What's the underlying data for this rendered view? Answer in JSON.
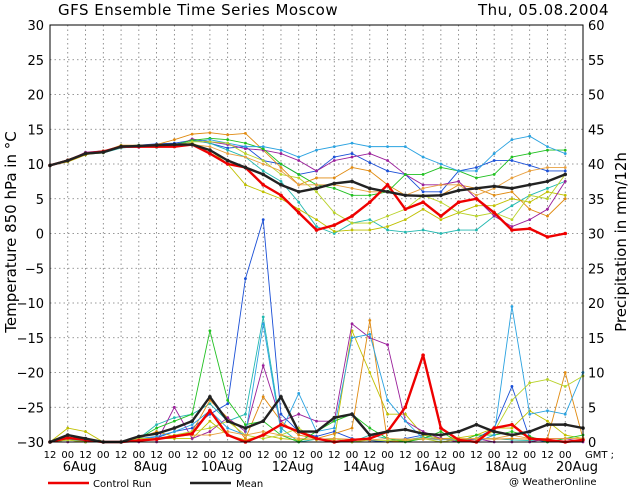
{
  "header": {
    "title": "GFS Ensemble Time Series Moscow",
    "date": "Thu, 05.08.2004"
  },
  "footer": {
    "legend_control": "Control Run",
    "legend_mean": "Mean",
    "credit": "@ WeatherOnline",
    "gmt_label": "GMT ;"
  },
  "colors": {
    "control": "#ee0000",
    "mean": "#222222",
    "members": [
      "#1a4fd6",
      "#22b8b0",
      "#c0c000",
      "#e08a10",
      "#9a1f9a",
      "#20c020",
      "#2aa2e0",
      "#b9d22a",
      "#e8a040",
      "#c01a7a"
    ]
  },
  "chart_data": {
    "type": "line",
    "title": "GFS Ensemble Time Series Moscow",
    "ylabel": "Temperature 850 hPa in °C",
    "y2label": "Precipitation in mm/12h",
    "ylim": [
      -30,
      30
    ],
    "y2lim": [
      0,
      60
    ],
    "yticks": [
      30,
      25,
      20,
      15,
      10,
      5,
      0,
      -5,
      -10,
      -15,
      -20,
      -25,
      -30
    ],
    "y2ticks": [
      60,
      55,
      50,
      45,
      40,
      35,
      30,
      25,
      20,
      15,
      10,
      5,
      0
    ],
    "x_hour_labels": [
      "12",
      "00",
      "12",
      "00",
      "12",
      "00",
      "12",
      "00",
      "12",
      "00",
      "12",
      "00",
      "12",
      "00",
      "12",
      "00",
      "12",
      "00",
      "12",
      "00",
      "12",
      "00",
      "12",
      "00",
      "12",
      "00",
      "12",
      "00",
      "12",
      "00"
    ],
    "x_date_labels": [
      {
        "label": "6Aug",
        "step": 2
      },
      {
        "label": "8Aug",
        "step": 6
      },
      {
        "label": "10Aug",
        "step": 10
      },
      {
        "label": "12Aug",
        "step": 14
      },
      {
        "label": "14Aug",
        "step": 18
      },
      {
        "label": "16Aug",
        "step": 22
      },
      {
        "label": "18Aug",
        "step": 26
      },
      {
        "label": "20Aug",
        "step": 30
      }
    ],
    "grid": true,
    "series": [
      {
        "name": "Control Run",
        "role": "control",
        "temp": [
          9.8,
          10.5,
          11.5,
          11.8,
          12.5,
          12.5,
          12.5,
          12.5,
          12.8,
          11.5,
          10,
          9.5,
          7,
          5.5,
          3,
          0.5,
          1.2,
          2.5,
          4.5,
          7,
          3.5,
          4.5,
          2.5,
          4.5,
          5,
          3,
          0.5,
          0.7,
          -0.5,
          0
        ],
        "precip": [
          0,
          0.6,
          0.3,
          0,
          0,
          0.2,
          0.4,
          0.8,
          1.2,
          4.5,
          1,
          0,
          1,
          2.5,
          1.5,
          0.5,
          0,
          0.3,
          0.5,
          1.5,
          5,
          12.5,
          2,
          0.3,
          0,
          2,
          2.5,
          0.5,
          0.3,
          0,
          0.3
        ]
      },
      {
        "name": "Mean",
        "role": "mean",
        "temp": [
          9.8,
          10.5,
          11.5,
          11.7,
          12.5,
          12.6,
          12.7,
          12.8,
          12.8,
          12,
          10.5,
          9.5,
          8.5,
          7,
          6,
          6.5,
          7.2,
          7.5,
          6.5,
          6,
          5.5,
          5.4,
          5.5,
          6.2,
          6.5,
          6.8,
          6.5,
          7,
          7.5,
          8.5
        ],
        "precip": [
          0,
          1,
          0.5,
          0,
          0,
          0.8,
          1.2,
          2,
          3,
          6.5,
          3,
          2,
          3,
          6.5,
          1.5,
          1.5,
          3.5,
          4,
          1,
          1.5,
          1.8,
          1.2,
          1,
          1.5,
          2.5,
          1.5,
          1,
          1.5,
          2.5,
          2.5,
          2
        ]
      },
      {
        "role": "member",
        "temp": [
          9.8,
          10.6,
          11.6,
          11.9,
          12.4,
          12.7,
          12.9,
          13,
          13.4,
          13,
          12.3,
          12.5,
          10.5,
          10,
          8.5,
          9,
          11,
          11.5,
          10.2,
          9,
          8.5,
          6,
          6,
          9,
          9.5,
          10.5,
          10.5,
          9.8,
          9,
          9
        ],
        "precip": [
          0,
          0.5,
          0.2,
          0,
          0,
          0.5,
          0.6,
          1.5,
          2,
          4,
          5.5,
          23.5,
          32,
          4,
          1.5,
          0.8,
          1.5,
          0.5,
          0.2,
          0,
          0.5,
          1,
          0.5,
          0.2,
          0.5,
          2,
          8,
          0.5,
          0,
          0,
          0.2
        ]
      },
      {
        "role": "member",
        "temp": [
          9.8,
          10.4,
          11.4,
          11.6,
          12.3,
          12.5,
          12.4,
          12.6,
          13.5,
          13,
          12,
          11,
          9,
          7.5,
          4.5,
          1,
          0,
          1.5,
          2,
          0.5,
          0.2,
          0.5,
          0,
          0.5,
          0.5,
          2.5,
          4,
          5.5,
          6.5,
          7.5
        ],
        "precip": [
          0,
          0.4,
          0,
          0,
          0,
          0.5,
          2.5,
          3.5,
          4,
          5.5,
          3,
          4,
          18,
          2,
          0,
          0.4,
          0.5,
          0,
          1,
          0.5,
          0.3,
          0.7,
          0.4,
          0.2,
          0.4,
          0.5,
          0.3,
          0.2,
          0.4,
          0,
          0.2
        ]
      },
      {
        "role": "member",
        "temp": [
          9.8,
          10.3,
          11.3,
          11.8,
          12.5,
          12.6,
          12.7,
          12.6,
          13,
          12,
          10,
          7,
          6,
          5,
          3.5,
          2,
          0.3,
          0.5,
          0.5,
          1,
          2,
          3.5,
          2,
          3,
          4,
          4,
          5,
          4.5,
          6,
          5.5
        ],
        "precip": [
          0,
          2,
          1.5,
          0,
          0,
          0.5,
          0.5,
          0.5,
          0.5,
          3,
          1,
          0.3,
          1,
          0.5,
          0.3,
          0.5,
          0.3,
          16,
          10,
          4,
          4,
          1,
          0.5,
          0.6,
          1,
          2,
          2,
          4.5,
          3,
          1,
          0.5
        ]
      },
      {
        "role": "member",
        "temp": [
          9.8,
          10.5,
          11.6,
          11.8,
          12.7,
          12.7,
          12.8,
          13.5,
          14.3,
          14.5,
          14.2,
          14.4,
          12,
          9.5,
          7,
          8,
          8,
          9.5,
          9,
          7,
          5.5,
          5.5,
          5.5,
          7,
          6.5,
          5.5,
          6,
          3.5,
          2.5,
          5
        ],
        "precip": [
          0,
          0.3,
          0,
          0,
          0,
          0.5,
          1.5,
          0.8,
          1.5,
          6,
          3.5,
          0.5,
          6.5,
          3,
          1,
          0.5,
          1.2,
          2,
          17.5,
          0,
          0.2,
          0.4,
          0.5,
          0.4,
          0.5,
          0.4,
          0.5,
          0.4,
          0.5,
          10,
          0.5
        ]
      },
      {
        "role": "member",
        "temp": [
          9.8,
          10.5,
          11.7,
          11.9,
          12.4,
          12.4,
          12.5,
          12.5,
          13.6,
          13.2,
          12.8,
          12.2,
          12,
          11.5,
          10.5,
          9,
          10.5,
          11,
          11.5,
          10.5,
          8.5,
          7,
          7,
          7.5,
          5,
          2.5,
          1,
          2,
          3.5,
          7.5
        ],
        "precip": [
          0,
          0,
          0,
          0,
          0,
          0,
          0,
          5,
          0.5,
          1.5,
          3.5,
          1.5,
          11,
          3,
          4,
          3,
          3,
          17,
          15,
          14,
          3,
          1.5,
          0.5,
          0,
          0.5,
          0,
          0,
          0,
          0.5,
          0.5,
          0
        ]
      },
      {
        "role": "member",
        "temp": [
          9.8,
          10.5,
          11.6,
          11.8,
          12.6,
          12.7,
          12.6,
          12.8,
          13.4,
          13.7,
          13.5,
          13,
          12.2,
          10,
          8.5,
          7,
          6.5,
          5.5,
          5.5,
          6,
          8.5,
          8.5,
          9.5,
          9,
          8,
          8.5,
          11,
          11.5,
          12,
          12
        ],
        "precip": [
          0,
          0.5,
          0,
          0,
          0,
          0.5,
          2,
          3,
          4,
          16,
          6,
          2.5,
          3,
          1,
          0,
          1.5,
          3,
          4,
          2,
          0.5,
          0,
          0.5,
          1.5,
          0,
          1,
          1,
          1.5,
          0.8,
          0,
          0.5,
          1
        ]
      },
      {
        "role": "member",
        "temp": [
          9.8,
          10.4,
          11.5,
          11.7,
          12.5,
          12.6,
          12.7,
          12.8,
          13.2,
          13.5,
          13,
          12.5,
          12.5,
          12,
          11,
          12,
          12.5,
          13,
          12.5,
          12.5,
          12.5,
          11,
          10,
          9,
          9,
          11.5,
          13.5,
          14,
          12.5,
          11.5
        ],
        "precip": [
          0,
          0.3,
          0.2,
          0,
          0,
          0.5,
          0.8,
          1.5,
          2.5,
          4.5,
          2,
          1,
          17,
          1.5,
          7,
          1.5,
          2,
          15,
          15.5,
          6,
          3,
          0.5,
          0.3,
          0.5,
          0,
          1,
          19.5,
          4,
          4.5,
          4,
          10
        ]
      },
      {
        "role": "member",
        "temp": [
          9.8,
          10.5,
          11.4,
          11.6,
          12.5,
          12.6,
          12.6,
          12.7,
          13.2,
          13.2,
          13,
          11.5,
          10.5,
          8.5,
          8,
          6,
          3,
          1.5,
          1.5,
          2.5,
          3.5,
          5.5,
          4.5,
          3,
          2.5,
          3,
          2,
          5.5,
          5,
          8.5
        ],
        "precip": [
          0,
          0.3,
          0,
          0,
          0,
          0.5,
          0.5,
          1,
          1.5,
          2,
          3,
          1,
          0.5,
          1,
          2,
          0.3,
          0.5,
          0,
          0.3,
          0.2,
          0.3,
          0.5,
          0,
          0.4,
          0.5,
          1.5,
          6,
          8.5,
          9,
          8,
          9.5
        ]
      },
      {
        "role": "member",
        "temp": [
          9.8,
          10.6,
          11.5,
          11.9,
          12.4,
          12.5,
          12.7,
          12.8,
          12.8,
          12.5,
          11.5,
          11,
          10,
          9,
          7,
          7,
          7,
          6.5,
          6,
          6,
          5.5,
          6.5,
          7,
          7,
          5.5,
          6.5,
          8,
          9,
          9.5,
          9.5
        ],
        "precip": [
          0,
          0.5,
          0.3,
          0,
          0,
          0.3,
          0.5,
          0.8,
          1,
          1,
          1.5,
          1,
          1.5,
          1,
          0.5,
          0.4,
          0.5,
          0.4,
          0.3,
          0.5,
          0.4,
          0.5,
          0.4,
          0.5,
          0.5,
          0.5,
          1,
          0.5,
          0.5,
          0.5,
          0.5
        ]
      }
    ]
  }
}
